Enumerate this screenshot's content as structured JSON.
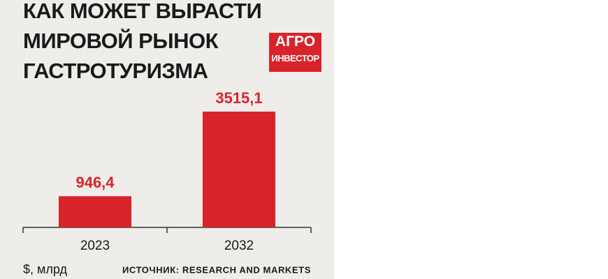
{
  "chart_data": {
    "type": "bar",
    "title": "КАК МОЖЕТ ВЫРАСТИ МИРОВОЙ РЫНОК ГАСТРОТУРИЗМА",
    "logo": {
      "line1": "АГРО",
      "line2": "ИНВЕСТОР"
    },
    "categories": [
      "2023",
      "2032"
    ],
    "values": [
      946.4,
      3515.1
    ],
    "value_labels": [
      "946,4",
      "3515,1"
    ],
    "color": "#d9232b",
    "unit": "$, млрд",
    "source": "ИСТОЧНИК: RESEARCH AND MARKETS"
  }
}
